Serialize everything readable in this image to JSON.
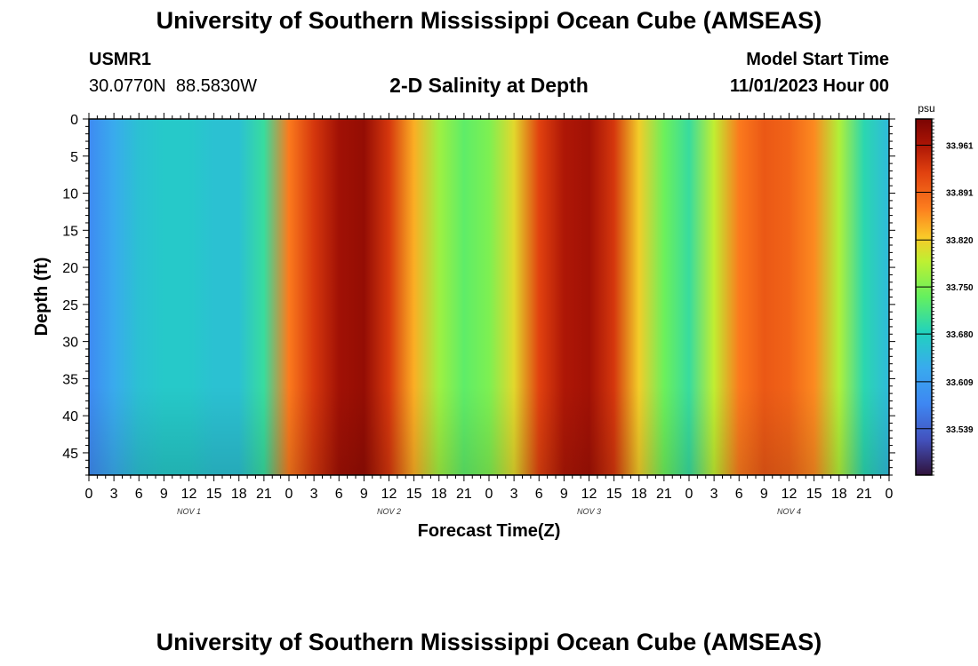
{
  "header": {
    "title": "University of Southern Mississippi Ocean Cube (AMSEAS)",
    "station_id": "USMR1",
    "coords": "30.0770N  88.5830W",
    "plot_title": "2-D Salinity at Depth",
    "model_start_label": "Model Start Time",
    "model_start_value": "11/01/2023 Hour 00"
  },
  "footer": {
    "title": "University of Southern Mississippi Ocean Cube (AMSEAS)"
  },
  "chart_data": {
    "type": "heatmap",
    "title": "2-D Salinity at Depth",
    "xlabel": "Forecast Time(Z)",
    "ylabel": "Depth (ft)",
    "x_tick_labels": [
      "0",
      "3",
      "6",
      "9",
      "12",
      "15",
      "18",
      "21",
      "0",
      "3",
      "6",
      "9",
      "12",
      "15",
      "18",
      "21",
      "0",
      "3",
      "6",
      "9",
      "12",
      "15",
      "18",
      "21",
      "0",
      "3",
      "6",
      "9",
      "12",
      "15",
      "18",
      "21",
      "0"
    ],
    "x_hours_range": [
      0,
      96
    ],
    "date_labels": [
      {
        "label": "NOV 1",
        "hour": 12
      },
      {
        "label": "NOV 2",
        "hour": 36
      },
      {
        "label": "NOV 3",
        "hour": 60
      },
      {
        "label": "NOV 4",
        "hour": 84
      }
    ],
    "y_ticks": [
      0,
      5,
      10,
      15,
      20,
      25,
      30,
      35,
      40,
      45
    ],
    "ylim": [
      0,
      48
    ],
    "y_inverted": true,
    "colorbar": {
      "unit": "psu",
      "range": [
        33.47,
        34.0
      ],
      "tick_values": [
        33.961,
        33.891,
        33.82,
        33.75,
        33.68,
        33.609,
        33.539
      ],
      "tick_labels": [
        "33.961",
        "33.891",
        "33.820",
        "33.750",
        "33.680",
        "33.609",
        "33.539"
      ]
    },
    "salinity_profile_hours": [
      0,
      3,
      6,
      9,
      12,
      15,
      18,
      21,
      24,
      27,
      30,
      33,
      36,
      39,
      42,
      45,
      48,
      51,
      54,
      57,
      60,
      63,
      66,
      69,
      72,
      75,
      78,
      81,
      84,
      87,
      90,
      93,
      96
    ],
    "salinity_profile_psu": [
      33.58,
      33.63,
      33.66,
      33.67,
      33.67,
      33.66,
      33.66,
      33.7,
      33.87,
      33.93,
      33.97,
      33.98,
      33.93,
      33.84,
      33.77,
      33.73,
      33.75,
      33.81,
      33.92,
      33.96,
      33.97,
      33.93,
      33.82,
      33.74,
      33.7,
      33.79,
      33.87,
      33.9,
      33.89,
      33.86,
      33.78,
      33.69,
      33.65
    ]
  }
}
